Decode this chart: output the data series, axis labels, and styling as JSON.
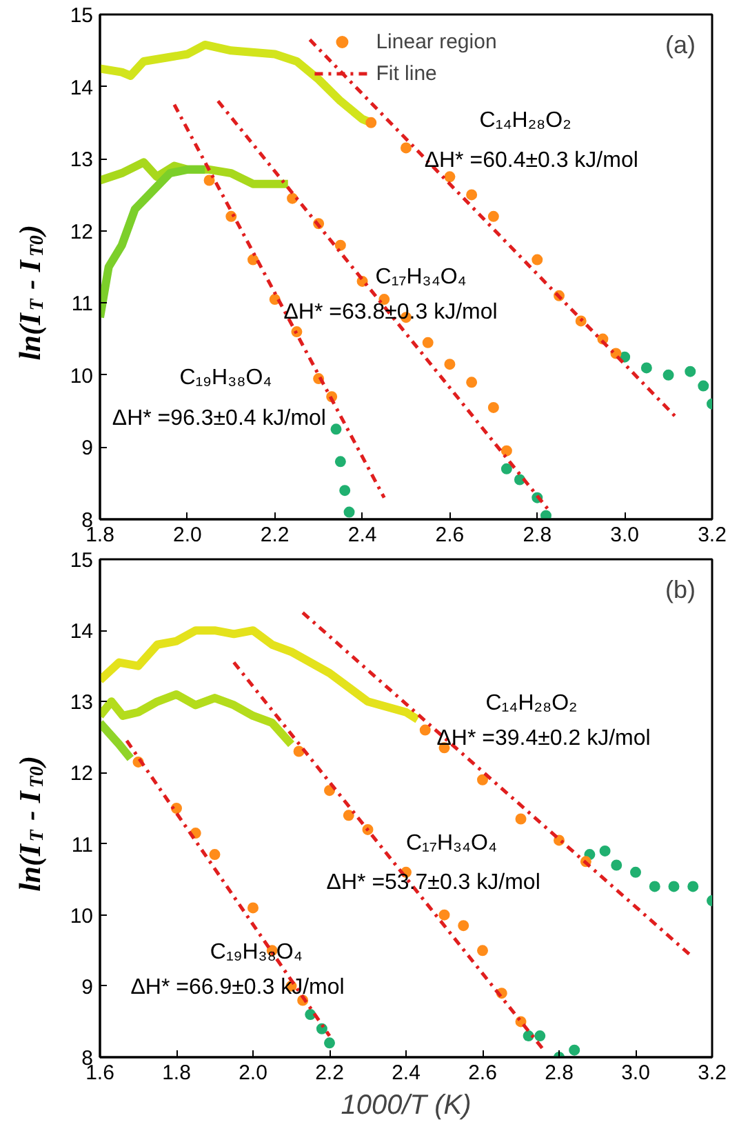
{
  "chart_data": [
    {
      "type": "line",
      "title": "(a)",
      "ylabel": "ln(I$_{T}$ - I$_{T0}$)",
      "xlim": [
        1.8,
        3.2
      ],
      "xticks": [
        {
          "value": 1.8,
          "label": "1.8"
        },
        {
          "value": 2,
          "label": "2.0"
        },
        {
          "value": 2.2,
          "label": "2.2"
        },
        {
          "value": 2.4,
          "label": "2.4"
        },
        {
          "value": 2.6,
          "label": "2.6"
        },
        {
          "value": 2.8,
          "label": "2.8"
        },
        {
          "value": 3,
          "label": "3.0"
        },
        {
          "value": 3.2,
          "label": "3.2"
        }
      ],
      "ylim": [
        8,
        15
      ],
      "yticks": [
        8,
        9,
        10,
        11,
        12,
        13,
        14,
        15
      ],
      "grid": false,
      "legend": "top",
      "line_style": "solid",
      "series": [
        {
          "color": "#d2e41c",
          "x": [
            1.8,
            1.85,
            1.87,
            1.9,
            1.95,
            2.0,
            2.04,
            2.1,
            2.2,
            2.25,
            2.3,
            2.35,
            2.4,
            2.42
          ],
          "values": [
            14.25,
            14.2,
            14.15,
            14.35,
            14.4,
            14.45,
            14.58,
            14.5,
            14.45,
            14.35,
            14.1,
            13.8,
            13.55,
            13.5
          ]
        },
        {
          "color": "#a8d81c",
          "x": [
            1.8,
            1.85,
            1.9,
            1.93,
            1.97,
            2.0,
            2.05,
            2.1,
            2.15,
            2.2,
            2.23
          ],
          "values": [
            12.7,
            12.8,
            12.95,
            12.75,
            12.9,
            12.85,
            12.85,
            12.8,
            12.65,
            12.65,
            12.65
          ]
        },
        {
          "color": "#7ccf2a",
          "x": [
            1.8,
            1.82,
            1.85,
            1.88,
            1.92,
            1.96,
            2.0,
            2.04
          ],
          "values": [
            10.8,
            11.5,
            11.8,
            12.3,
            12.55,
            12.8,
            12.85,
            12.85
          ]
        },
        {
          "type": "scatter",
          "marker": "circle",
          "color": "#20b070",
          "x": [
            3.0,
            3.05,
            3.1,
            3.15,
            3.18,
            3.2,
            2.73,
            2.76,
            2.8,
            2.82,
            2.34,
            2.35,
            2.36,
            2.37
          ],
          "values": [
            10.25,
            10.1,
            10.0,
            10.05,
            9.85,
            9.6,
            8.7,
            8.55,
            8.3,
            8.05,
            9.25,
            8.8,
            8.4,
            8.1
          ]
        },
        {
          "type": "scatter",
          "marker": "circle",
          "name": "Linear region",
          "color": "#ff8c1a",
          "x": [
            2.42,
            2.5,
            2.6,
            2.65,
            2.7,
            2.8,
            2.85,
            2.9,
            2.95,
            2.98,
            2.24,
            2.3,
            2.35,
            2.4,
            2.45,
            2.5,
            2.55,
            2.6,
            2.65,
            2.7,
            2.73,
            2.05,
            2.1,
            2.15,
            2.2,
            2.25,
            2.3,
            2.33
          ],
          "values": [
            13.5,
            13.15,
            12.75,
            12.5,
            12.2,
            11.6,
            11.1,
            10.75,
            10.5,
            10.3,
            12.45,
            12.1,
            11.8,
            11.3,
            11.05,
            10.8,
            10.45,
            10.15,
            9.9,
            9.55,
            8.95,
            12.7,
            12.2,
            11.6,
            11.05,
            10.6,
            9.95,
            9.7
          ]
        },
        {
          "line_style": "dashed",
          "name": "Fit line",
          "color": "#e01e1e",
          "x": [
            2.28,
            3.12,
            null,
            2.07,
            2.83,
            null,
            1.97,
            2.45
          ],
          "values": [
            14.65,
            9.4,
            null,
            13.8,
            8.1,
            null,
            13.75,
            8.3
          ]
        }
      ],
      "annotations": [
        "C₁₄H₂₈O₂",
        "ΔH* =60.4±0.3 kJ/mol",
        "C₁₇H₃₄O₄",
        "ΔH* =63.8±0.3 kJ/mol",
        "C₁₉H₃₈O₄",
        "ΔH* =96.3±0.4 kJ/mol"
      ]
    },
    {
      "type": "line",
      "title": "(b)",
      "xlabel": "1000/T (K)",
      "ylabel": "ln(I$_{T}$ - I$_{T0}$)",
      "xlim": [
        1.6,
        3.2
      ],
      "xticks": [
        {
          "value": 1.6,
          "label": "1.6"
        },
        {
          "value": 1.8,
          "label": "1.8"
        },
        {
          "value": 2,
          "label": "2.0"
        },
        {
          "value": 2.2,
          "label": "2.2"
        },
        {
          "value": 2.4,
          "label": "2.4"
        },
        {
          "value": 2.6,
          "label": "2.6"
        },
        {
          "value": 2.8,
          "label": "2.8"
        },
        {
          "value": 3,
          "label": "3.0"
        },
        {
          "value": 3.2,
          "label": "3.2"
        }
      ],
      "ylim": [
        8,
        15
      ],
      "yticks": [
        8,
        9,
        10,
        11,
        12,
        13,
        14,
        15
      ],
      "grid": false,
      "line_style": "solid",
      "series": [
        {
          "color": "#e4e21c",
          "x": [
            1.6,
            1.65,
            1.7,
            1.75,
            1.8,
            1.85,
            1.9,
            1.95,
            2.0,
            2.05,
            2.1,
            2.2,
            2.3,
            2.4,
            2.43
          ],
          "values": [
            13.3,
            13.55,
            13.5,
            13.8,
            13.85,
            14.0,
            14.0,
            13.95,
            14.0,
            13.8,
            13.7,
            13.4,
            13.0,
            12.85,
            12.75
          ]
        },
        {
          "color": "#b4dc1c",
          "x": [
            1.6,
            1.63,
            1.66,
            1.7,
            1.75,
            1.8,
            1.85,
            1.9,
            1.95,
            2.0,
            2.05,
            2.1
          ],
          "values": [
            12.8,
            13.0,
            12.8,
            12.85,
            13.0,
            13.1,
            12.95,
            13.05,
            12.95,
            12.8,
            12.7,
            12.4
          ]
        },
        {
          "color": "#90d428",
          "x": [
            1.6,
            1.65,
            1.68
          ],
          "values": [
            12.7,
            12.4,
            12.2
          ]
        },
        {
          "type": "scatter",
          "marker": "circle",
          "color": "#20b070",
          "x": [
            2.88,
            2.92,
            2.95,
            3.0,
            3.05,
            3.1,
            3.15,
            3.2,
            2.72,
            2.75,
            2.8,
            2.84,
            2.15,
            2.18,
            2.2
          ],
          "values": [
            10.85,
            10.9,
            10.7,
            10.6,
            10.4,
            10.4,
            10.4,
            10.2,
            8.3,
            8.3,
            8.0,
            8.1,
            8.6,
            8.4,
            8.2
          ]
        },
        {
          "type": "scatter",
          "marker": "circle",
          "color": "#ff8c1a",
          "x": [
            2.45,
            2.5,
            2.6,
            2.7,
            2.8,
            2.87,
            2.12,
            2.2,
            2.25,
            2.3,
            2.4,
            2.5,
            2.55,
            2.6,
            2.65,
            2.7,
            1.7,
            1.8,
            1.85,
            1.9,
            2.0,
            2.05,
            2.1,
            2.13
          ],
          "values": [
            12.6,
            12.35,
            11.9,
            11.35,
            11.05,
            10.75,
            12.3,
            11.75,
            11.4,
            11.2,
            10.6,
            10.0,
            9.85,
            9.5,
            8.9,
            8.5,
            12.15,
            11.5,
            11.15,
            10.85,
            10.1,
            9.5,
            9.0,
            8.8
          ]
        },
        {
          "line_style": "dashed",
          "color": "#e01e1e",
          "x": [
            2.13,
            3.14,
            null,
            1.95,
            2.76,
            null,
            1.67,
            2.2
          ],
          "values": [
            14.25,
            9.45,
            null,
            13.55,
            8.1,
            null,
            12.45,
            8.3
          ]
        }
      ],
      "annotations": [
        "C₁₄H₂₈O₂",
        "ΔH* =39.4±0.2 kJ/mol",
        "C₁₇H₃₄O₄",
        "ΔH* =53.7±0.3 kJ/mol",
        "C₁₉H₃₈O₄",
        "ΔH* =66.9±0.3 kJ/mol"
      ]
    }
  ]
}
